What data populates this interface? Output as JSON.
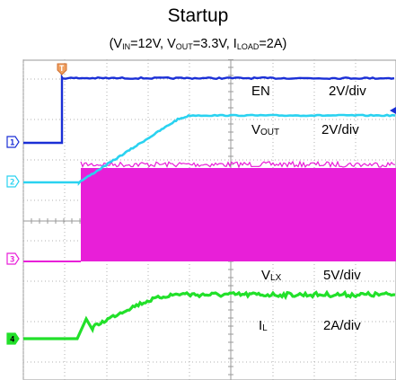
{
  "title": "Startup",
  "subtitle": {
    "parts": [
      {
        "t": "(V",
        "sub": false
      },
      {
        "t": "IN",
        "sub": true
      },
      {
        "t": "=12V, V",
        "sub": false
      },
      {
        "t": "OUT",
        "sub": true
      },
      {
        "t": "=3.3V, I",
        "sub": false
      },
      {
        "t": "LOAD",
        "sub": true
      },
      {
        "t": "=2A)",
        "sub": false
      }
    ]
  },
  "chart_data": {
    "type": "line",
    "grid": true,
    "channels": [
      {
        "id": "1",
        "name": "EN",
        "name_main": "EN",
        "name_sub": "",
        "scale": "2V/div",
        "color": "#1a2fd6",
        "marker_label": "1"
      },
      {
        "id": "2",
        "name": "VOUT",
        "name_main": "V",
        "name_sub": "OUT",
        "scale": "2V/div",
        "color": "#2ad2f0",
        "marker_label": "2"
      },
      {
        "id": "3",
        "name": "VLX",
        "name_main": "V",
        "name_sub": "LX",
        "scale": "5V/div",
        "color": "#e81fd8",
        "marker_label": "3"
      },
      {
        "id": "4",
        "name": "IL",
        "name_main": "I",
        "name_sub": "L",
        "scale": "2A/div",
        "color": "#22e02a",
        "marker_label": "4"
      }
    ],
    "trigger_marker": "T"
  }
}
